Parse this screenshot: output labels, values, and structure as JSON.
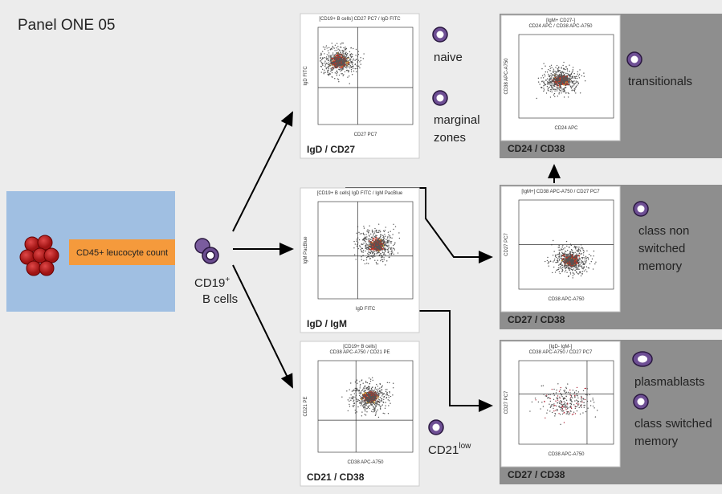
{
  "title": "Panel ONE 05",
  "source": {
    "label": "CD45+ leucocyte count"
  },
  "cd19": {
    "marker": "CD19",
    "sup": "+",
    "line2": "B cells"
  },
  "plots": [
    {
      "header": [
        "[CD19+ B cells] CD27 PC7 / IgD FITC"
      ],
      "x_axis": "CD27 PC7",
      "y_axis": "IgD FITC",
      "caption": "IgD / CD27"
    },
    {
      "header": [
        "[CD19+ B cells] IgD FITC / IgM PacBlue"
      ],
      "x_axis": "IgD FITC",
      "y_axis": "IgM PacBlue",
      "caption": "IgD / IgM"
    },
    {
      "header": [
        "[CD19+ B cells]",
        "CD38 APC-A750 / CD21 PE"
      ],
      "x_axis": "CD38 APC-A750",
      "y_axis": "CD21 PE",
      "caption": "CD21 / CD38"
    },
    {
      "header": [
        "[IgM+ CD27-]",
        "CD24 APC / CD38 APC-A750"
      ],
      "x_axis": "CD24 APC",
      "y_axis": "CD38 APC-A750",
      "caption": "CD24 / CD38"
    },
    {
      "header": [
        "[IgM+] CD38 APC-A750 / CD27 PC7"
      ],
      "x_axis": "CD38 APC-A750",
      "y_axis": "CD27 PC7",
      "caption": "CD27 / CD38"
    },
    {
      "header": [
        "[IgD- IgM-]",
        "CD38 APC-A750 / CD27 PC7"
      ],
      "x_axis": "CD38 APC-A750",
      "y_axis": "CD27 PC7",
      "caption": "CD27 / CD38"
    }
  ],
  "populations": [
    {
      "lines": [
        "naive"
      ]
    },
    {
      "lines": [
        "marginal",
        "zones"
      ]
    },
    {
      "lines": [
        "transitionals"
      ]
    },
    {
      "lines": [
        "class non",
        "switched",
        "memory"
      ]
    },
    {
      "lines": [
        "plasmablasts"
      ]
    },
    {
      "lines": [
        "class switched",
        "memory"
      ]
    },
    {
      "lines": [
        "CD21"
      ],
      "sup": "low"
    }
  ]
}
